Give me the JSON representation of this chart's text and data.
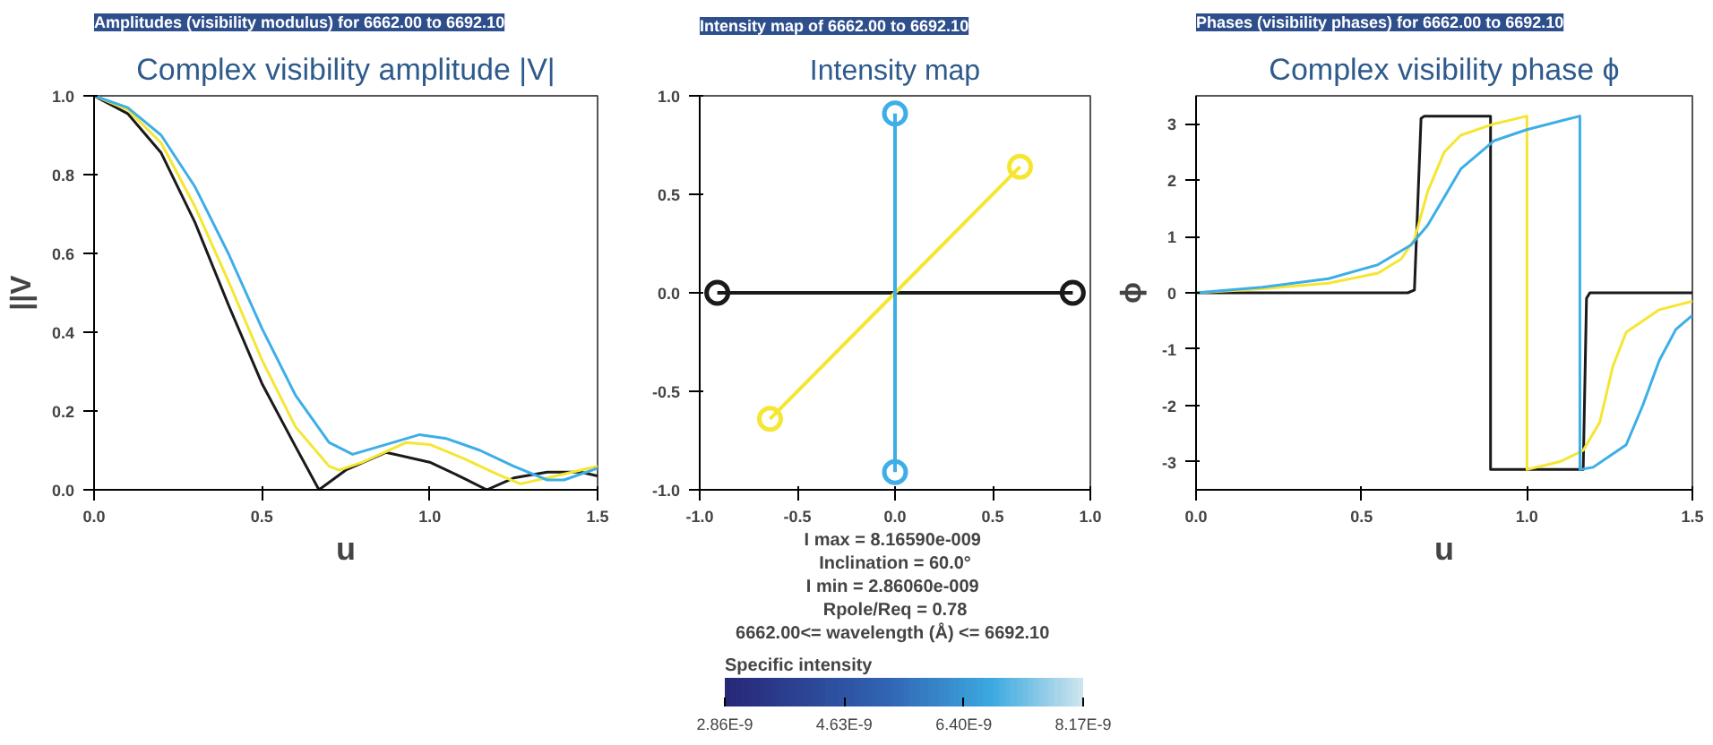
{
  "chart_data": [
    {
      "type": "line",
      "title": "Complex visibility amplitude |V|",
      "subtitle": "Amplitudes (visibility modulus) for 6662.00 to 6692.10",
      "xlabel": "u",
      "ylabel": "||V",
      "xlim": [
        0,
        1.5
      ],
      "ylim": [
        0,
        1
      ],
      "xticks": [
        {
          "value": 0,
          "label": "0.0"
        },
        {
          "value": 0.5,
          "label": "0.5"
        },
        {
          "value": 1,
          "label": "1.0"
        },
        {
          "value": 1.5,
          "label": "1.5"
        }
      ],
      "yticks": [
        {
          "value": 0,
          "label": "0.0"
        },
        {
          "value": 0.2,
          "label": "0.2"
        },
        {
          "value": 0.4,
          "label": "0.4"
        },
        {
          "value": 0.6,
          "label": "0.6"
        },
        {
          "value": 0.8,
          "label": "0.8"
        },
        {
          "value": 1,
          "label": "1.0"
        }
      ],
      "grid": false,
      "series": [
        {
          "color": "#1a1a1a",
          "x": [
            0,
            0.1,
            0.2,
            0.3,
            0.4,
            0.5,
            0.6,
            0.67,
            0.75,
            0.87,
            1.0,
            1.1,
            1.17,
            1.25,
            1.35,
            1.45,
            1.5
          ],
          "values": [
            1,
            0.955,
            0.855,
            0.68,
            0.47,
            0.27,
            0.11,
            0,
            0.05,
            0.095,
            0.07,
            0.03,
            0,
            0.03,
            0.045,
            0.045,
            0.035
          ]
        },
        {
          "color": "#f5e632",
          "x": [
            0,
            0.1,
            0.2,
            0.3,
            0.4,
            0.5,
            0.6,
            0.7,
            0.73,
            0.8,
            0.93,
            1.0,
            1.1,
            1.2,
            1.27,
            1.35,
            1.45,
            1.5
          ],
          "values": [
            1,
            0.965,
            0.88,
            0.72,
            0.53,
            0.33,
            0.16,
            0.06,
            0.05,
            0.07,
            0.12,
            0.115,
            0.08,
            0.04,
            0.015,
            0.03,
            0.05,
            0.06
          ]
        },
        {
          "color": "#3daee8",
          "x": [
            0,
            0.1,
            0.2,
            0.3,
            0.4,
            0.5,
            0.6,
            0.7,
            0.77,
            0.85,
            0.97,
            1.05,
            1.15,
            1.25,
            1.35,
            1.4,
            1.5
          ],
          "values": [
            1,
            0.97,
            0.9,
            0.77,
            0.6,
            0.41,
            0.24,
            0.12,
            0.09,
            0.11,
            0.14,
            0.13,
            0.1,
            0.06,
            0.025,
            0.025,
            0.055
          ]
        }
      ]
    },
    {
      "type": "line",
      "title": "Intensity map",
      "subtitle": "Intensity map of 6662.00 to 6692.10",
      "xlim": [
        -1,
        1
      ],
      "ylim": [
        -1,
        1
      ],
      "xticks": [
        {
          "value": -1,
          "label": "-1.0"
        },
        {
          "value": -0.5,
          "label": "-0.5"
        },
        {
          "value": 0,
          "label": "0.0"
        },
        {
          "value": 0.5,
          "label": "0.5"
        },
        {
          "value": 1,
          "label": "1.0"
        }
      ],
      "yticks": [
        {
          "value": -1,
          "label": "-1.0"
        },
        {
          "value": -0.5,
          "label": "-0.5"
        },
        {
          "value": 0,
          "label": "0.0"
        },
        {
          "value": 0.5,
          "label": "0.5"
        },
        {
          "value": 1,
          "label": "1.0"
        }
      ],
      "grid": false,
      "marker": "circle",
      "series": [
        {
          "color": "#1a1a1a",
          "x": [
            -0.91,
            0.91
          ],
          "values": [
            0,
            0
          ]
        },
        {
          "color": "#f5e632",
          "x": [
            -0.64,
            0.64
          ],
          "values": [
            -0.64,
            0.64
          ]
        },
        {
          "color": "#3daee8",
          "x": [
            0,
            0
          ],
          "values": [
            -0.91,
            0.91
          ]
        }
      ],
      "annotations": [
        "I max =  8.16590e-009",
        "Inclination = 60.0°",
        "I min =  2.86060e-009",
        "Rpole/Req = 0.78",
        "6662.00<= wavelength (Å) <=  6692.10"
      ],
      "clabel": "Specific intensity",
      "clim": [
        2.86e-09,
        8.17e-09
      ],
      "cticks": [
        {
          "value": 2.86e-09,
          "label": "2.86E-9"
        },
        {
          "value": 4.63e-09,
          "label": "4.63E-9"
        },
        {
          "value": 6.4e-09,
          "label": "6.40E-9"
        },
        {
          "value": 8.17e-09,
          "label": "8.17E-9"
        }
      ]
    },
    {
      "type": "line",
      "title": "Complex visibility phase ϕ",
      "subtitle": "Phases (visibility phases) for 6662.00 to 6692.10",
      "xlabel": "u",
      "ylabel": "ϕ",
      "xlim": [
        0,
        1.5
      ],
      "ylim": [
        -3.5,
        3.5
      ],
      "xticks": [
        {
          "value": 0,
          "label": "0.0"
        },
        {
          "value": 0.5,
          "label": "0.5"
        },
        {
          "value": 1,
          "label": "1.0"
        },
        {
          "value": 1.5,
          "label": "1.5"
        }
      ],
      "yticks": [
        -3,
        -2,
        -1,
        0,
        1,
        2,
        3
      ],
      "grid": false,
      "series": [
        {
          "color": "#1a1a1a",
          "x": [
            0,
            0.64,
            0.66,
            0.68,
            0.69,
            0.89,
            0.89,
            1.17,
            1.18,
            1.19,
            1.5
          ],
          "values": [
            0,
            0,
            0.05,
            3.1,
            3.14,
            3.14,
            -3.14,
            -3.14,
            -0.1,
            0,
            0
          ]
        },
        {
          "color": "#f5e632",
          "x": [
            0,
            0.2,
            0.4,
            0.55,
            0.62,
            0.66,
            0.7,
            0.75,
            0.8,
            0.9,
            1.0,
            1.0,
            1.1,
            1.17,
            1.22,
            1.26,
            1.3,
            1.4,
            1.5
          ],
          "values": [
            0,
            0.07,
            0.17,
            0.35,
            0.6,
            0.95,
            1.8,
            2.5,
            2.8,
            3.0,
            3.14,
            -3.14,
            -3.0,
            -2.8,
            -2.3,
            -1.3,
            -0.7,
            -0.3,
            -0.15
          ]
        },
        {
          "color": "#3daee8",
          "x": [
            0,
            0.2,
            0.4,
            0.55,
            0.65,
            0.7,
            0.75,
            0.8,
            0.9,
            1.0,
            1.1,
            1.16,
            1.16,
            1.2,
            1.3,
            1.35,
            1.4,
            1.45,
            1.5
          ],
          "values": [
            0,
            0.1,
            0.25,
            0.5,
            0.85,
            1.2,
            1.7,
            2.2,
            2.7,
            2.9,
            3.05,
            3.14,
            -3.14,
            -3.1,
            -2.7,
            -2.0,
            -1.2,
            -0.65,
            -0.4
          ]
        }
      ]
    }
  ]
}
